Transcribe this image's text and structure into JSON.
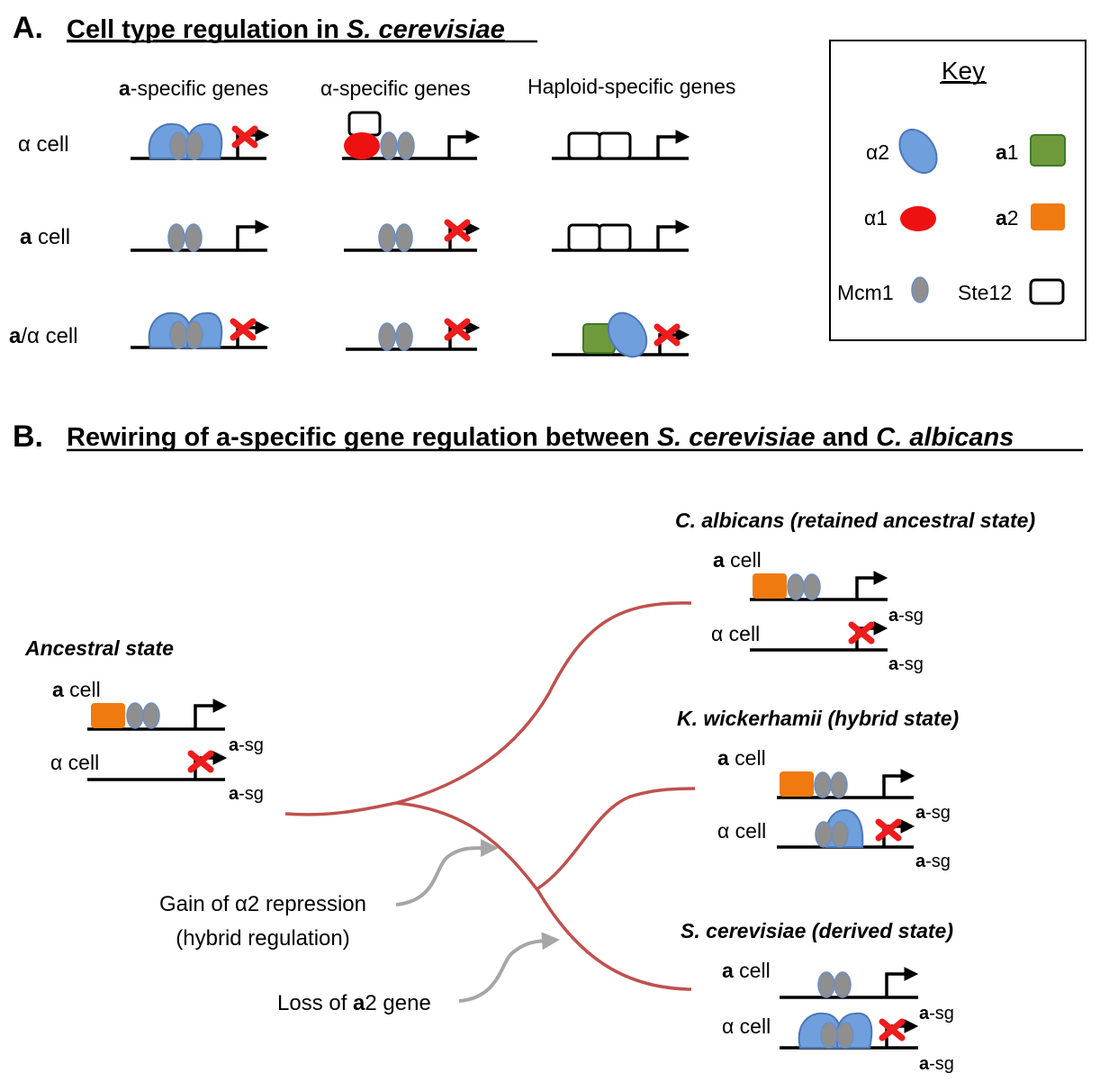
{
  "panel_a": {
    "letter": "A.",
    "title_plain": "Cell type regulation in ",
    "title_italic": "S. cerevisiae",
    "col_headers": {
      "a_specific": {
        "bold": "a",
        "rest": "-specific genes"
      },
      "alpha_specific": "α-specific genes",
      "haploid_specific": "Haploid-specific genes"
    },
    "rows": {
      "alpha_cell": "α cell",
      "a_cell": {
        "bold": "a",
        "rest": " cell"
      },
      "a_alpha_cell": {
        "bold": "a",
        "rest": "/α cell"
      }
    }
  },
  "key": {
    "title": "Key",
    "alpha2": "α2",
    "a1": {
      "bold": "a",
      "rest": "1"
    },
    "alpha1": "α1",
    "a2": {
      "bold": "a",
      "rest": "2"
    },
    "mcm1": "Mcm1",
    "ste12": "Ste12"
  },
  "panel_b": {
    "letter": "B.",
    "title_1": "Rewiring of a-specific gene regulation between ",
    "title_2": "S. cerevisiae",
    "title_3": " and ",
    "title_4": "C. albicans",
    "ancestral": {
      "title": "Ancestral state",
      "a_cell": {
        "bold": "a",
        "rest": " cell"
      },
      "alpha_cell": "α cell"
    },
    "c_albicans": {
      "title": "C. albicans (retained ancestral state)",
      "a_cell": {
        "bold": "a",
        "rest": " cell"
      },
      "alpha_cell": "α cell"
    },
    "k_wickerhamii": {
      "title": "K. wickerhamii (hybrid state)",
      "a_cell": {
        "bold": "a",
        "rest": " cell"
      },
      "alpha_cell": "α cell"
    },
    "s_cerevisiae": {
      "title": "S. cerevisiae (derived state)",
      "a_cell": {
        "bold": "a",
        "rest": " cell"
      },
      "alpha_cell": "α cell"
    },
    "sg_label": {
      "bold": "a",
      "rest": "-sg"
    },
    "annotation_gain_1": "Gain of α2 repression",
    "annotation_gain_2": "(hybrid regulation)",
    "annotation_loss": {
      "before": "Loss of ",
      "bold": "a",
      "after": "2 gene"
    }
  },
  "colors": {
    "alpha2_fill": "#6f9fdc",
    "alpha2_stroke": "#4a78b8",
    "mcm1_fill": "#8f8f8f",
    "mcm1_stroke": "#6b8ec6",
    "alpha1": "#ee1111",
    "a1_fill": "#6f9a3c",
    "a1_stroke": "#3e7a24",
    "a2": "#f07a10",
    "repression_x": "#ee1c1c",
    "tree_branch": "#c0504d",
    "annotation_arrow": "#a6a6a6"
  }
}
